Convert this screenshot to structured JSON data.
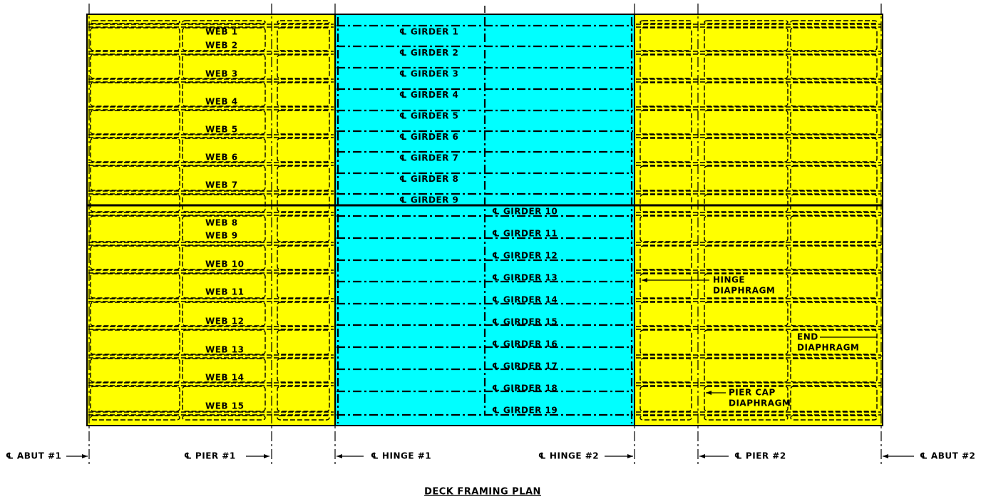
{
  "title": "DECK FRAMING PLAN",
  "webs": [
    "WEB 1",
    "WEB 2",
    "WEB 3",
    "WEB 4",
    "WEB 5",
    "WEB 6",
    "WEB 7",
    "WEB 8",
    "WEB 9",
    "WEB 10",
    "WEB 11",
    "WEB 12",
    "WEB 13",
    "WEB 14",
    "WEB 15"
  ],
  "girders": [
    "℄ GIRDER 1",
    "℄ GIRDER 2",
    "℄ GIRDER 3",
    "℄ GIRDER 4",
    "℄ GIRDER 5",
    "℄ GIRDER 6",
    "℄ GIRDER 7",
    "℄ GIRDER 8",
    "℄ GIRDER 9",
    "℄ GIRDER 10",
    "℄ GIRDER 11",
    "℄ GIRDER 12",
    "℄ GIRDER 13",
    "℄ GIRDER 14",
    "℄ GIRDER 15",
    "℄ GIRDER 16",
    "℄ GIRDER 17",
    "℄ GIRDER 18",
    "℄ GIRDER 19"
  ],
  "stations": [
    "℄ ABUT #1",
    "℄ PIER #1",
    "℄ HINGE #1",
    "℄ HINGE #2",
    "℄ PIER #2",
    "℄ ABUT #2"
  ],
  "notes": {
    "hinge_diaphragm": [
      "HINGE",
      "DIAPHRAGM"
    ],
    "end_diaphragm": [
      "END",
      "DIAPHRAGM"
    ],
    "pier_cap_diaphragm": [
      "PIER CAP",
      "DIAPHRAGM"
    ]
  }
}
